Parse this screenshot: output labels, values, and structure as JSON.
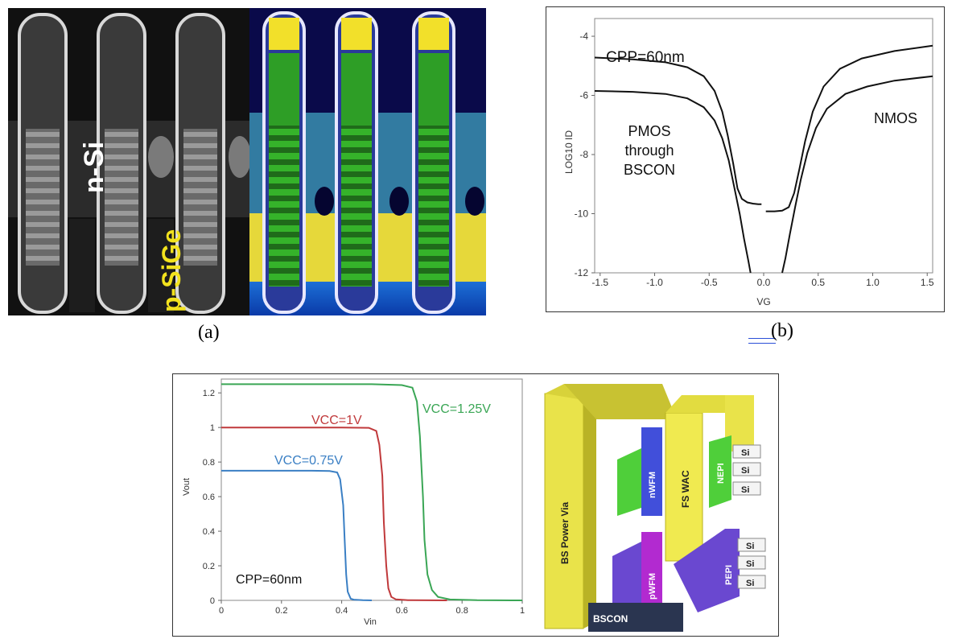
{
  "panel_a": {
    "caption": "(a)",
    "label_nsi": "n-Si",
    "label_psige": "p-SiGe"
  },
  "panel_b": {
    "caption": "(b)",
    "annotation": "CPP=60nm",
    "pmos_label_lines": [
      "PMOS",
      "through",
      "BSCON"
    ],
    "nmos_label": "NMOS"
  },
  "panel_c_structure": {
    "labels": {
      "bs_power_via": "BS Power Via",
      "fs_wac": "FS WAC",
      "nwfm": "nWFM",
      "pwfm": "pWFM",
      "nepi": "NEPI",
      "pepi": "PEPI",
      "bscon": "BSCON",
      "si": "Si"
    },
    "colors": {
      "via": "#e9e34a",
      "nwfm": "#2c3cd6",
      "pwfm": "#b22ad0",
      "green": "#4fcf3a",
      "purple": "#6a48d0",
      "bscon": "#2a3550"
    }
  },
  "chart_data": [
    {
      "type": "line",
      "title": "",
      "xlabel": "VG",
      "ylabel": "LOG10 ID",
      "xlim": [
        -1.55,
        1.55
      ],
      "ylim": [
        -12,
        -3.4
      ],
      "xticks": [
        "-1.5",
        "-1.0",
        "-0.5",
        "0.0",
        "0.5",
        "1.0",
        "1.5"
      ],
      "xtick_values": [
        -1.5,
        -1.0,
        -0.5,
        0.0,
        0.5,
        1.0,
        1.5
      ],
      "yticks": [
        "-4",
        "-6",
        "-8",
        "-10",
        "-12"
      ],
      "ytick_values": [
        -4,
        -6,
        -8,
        -10,
        -12
      ],
      "grid": false,
      "series": [
        {
          "name": "PMOS through BSCON",
          "color": "#111111",
          "x": [
            -1.55,
            -1.2,
            -0.9,
            -0.7,
            -0.55,
            -0.45,
            -0.38,
            -0.33,
            -0.28,
            -0.24,
            -0.2,
            -0.15,
            -0.1,
            -0.05,
            -0.02
          ],
          "y": [
            -4.72,
            -4.78,
            -4.88,
            -5.05,
            -5.35,
            -5.85,
            -6.55,
            -7.35,
            -8.3,
            -9.15,
            -9.5,
            -9.62,
            -9.66,
            -9.68,
            -9.68
          ]
        },
        {
          "name": "PMOS through BSCON",
          "color": "#111111",
          "x": [
            -1.55,
            -1.2,
            -0.9,
            -0.7,
            -0.55,
            -0.45,
            -0.38,
            -0.32,
            -0.27,
            -0.22,
            -0.18,
            -0.14,
            -0.12
          ],
          "y": [
            -5.85,
            -5.88,
            -5.95,
            -6.1,
            -6.4,
            -6.85,
            -7.45,
            -8.2,
            -9.1,
            -10.0,
            -10.85,
            -11.6,
            -12.0
          ]
        },
        {
          "name": "NMOS",
          "color": "#111111",
          "x": [
            0.02,
            0.1,
            0.17,
            0.23,
            0.28,
            0.33,
            0.38,
            0.45,
            0.55,
            0.7,
            0.9,
            1.2,
            1.55
          ],
          "y": [
            -9.92,
            -9.92,
            -9.9,
            -9.78,
            -9.3,
            -8.45,
            -7.55,
            -6.55,
            -5.7,
            -5.1,
            -4.75,
            -4.5,
            -4.32
          ]
        },
        {
          "name": "NMOS",
          "color": "#111111",
          "x": [
            0.17,
            0.2,
            0.24,
            0.29,
            0.34,
            0.4,
            0.48,
            0.58,
            0.75,
            0.95,
            1.2,
            1.55
          ],
          "y": [
            -12.0,
            -11.5,
            -10.7,
            -9.75,
            -8.85,
            -7.95,
            -7.1,
            -6.45,
            -5.95,
            -5.7,
            -5.5,
            -5.35
          ]
        }
      ],
      "annotations": [
        "CPP=60nm",
        "PMOS through BSCON",
        "NMOS"
      ]
    },
    {
      "type": "line",
      "title": "",
      "xlabel": "Vin",
      "ylabel": "Vout",
      "xlim": [
        0,
        1
      ],
      "ylim": [
        0,
        1.28
      ],
      "xticks": [
        "0",
        "0.2",
        "0.4",
        "0.6",
        "0.8",
        "1"
      ],
      "xtick_values": [
        0,
        0.2,
        0.4,
        0.6,
        0.8,
        1
      ],
      "yticks": [
        "0",
        "0.2",
        "0.4",
        "0.6",
        "0.8",
        "1",
        "1.2"
      ],
      "ytick_values": [
        0,
        0.2,
        0.4,
        0.6,
        0.8,
        1,
        1.2
      ],
      "grid": false,
      "series": [
        {
          "name": "VCC=0.75V",
          "color": "#3a7fc4",
          "x": [
            0,
            0.3,
            0.36,
            0.385,
            0.395,
            0.405,
            0.41,
            0.415,
            0.42,
            0.43,
            0.44,
            0.47,
            0.5
          ],
          "y": [
            0.75,
            0.75,
            0.748,
            0.74,
            0.7,
            0.55,
            0.35,
            0.15,
            0.05,
            0.01,
            0.004,
            0.001,
            0
          ]
        },
        {
          "name": "VCC=1V",
          "color": "#c0393b",
          "x": [
            0,
            0.4,
            0.49,
            0.515,
            0.525,
            0.535,
            0.54,
            0.548,
            0.555,
            0.565,
            0.58,
            0.62,
            0.75
          ],
          "y": [
            1.0,
            1.0,
            0.998,
            0.98,
            0.9,
            0.72,
            0.45,
            0.2,
            0.07,
            0.02,
            0.006,
            0.001,
            0
          ]
        },
        {
          "name": "VCC=1.25V",
          "color": "#3aa655",
          "x": [
            0,
            0.5,
            0.6,
            0.635,
            0.65,
            0.66,
            0.67,
            0.675,
            0.685,
            0.7,
            0.72,
            0.76,
            0.85,
            1.0
          ],
          "y": [
            1.25,
            1.25,
            1.245,
            1.23,
            1.15,
            0.95,
            0.6,
            0.35,
            0.15,
            0.06,
            0.02,
            0.005,
            0.001,
            0
          ]
        }
      ],
      "annotations": [
        "VCC=1V",
        "VCC=1.25V",
        "VCC=0.75V",
        "CPP=60nm"
      ]
    }
  ]
}
